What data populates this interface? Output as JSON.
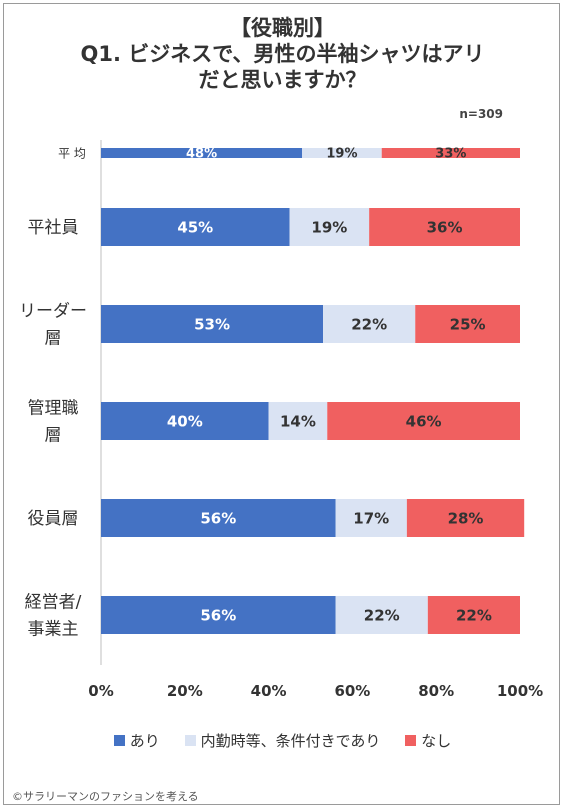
{
  "title_lines": [
    "【役職別】",
    "Q1. ビジネスで、男性の半袖シャツはアリ",
    "だと思いますか？"
  ],
  "sample_size": "n=309",
  "copyright": "©サラリーマンのファションを考える",
  "colors": {
    "yes": "#4472C4",
    "conditional": "#DAE3F3",
    "no": "#F06060"
  },
  "chart_data": {
    "type": "bar",
    "orientation": "horizontal",
    "stacked": true,
    "normalized": true,
    "categories": [
      "平均",
      "平社員",
      "リーダー層",
      "管理職層",
      "役員層",
      "経営者/事業主"
    ],
    "category_label_lines": [
      [
        "平 均"
      ],
      [
        "平社員"
      ],
      [
        "リーダー",
        "層"
      ],
      [
        "管理職",
        "層"
      ],
      [
        "役員層"
      ],
      [
        "経営者/",
        "事業主"
      ]
    ],
    "series": [
      {
        "name": "あり",
        "values": [
          48,
          45,
          53,
          40,
          56,
          56
        ]
      },
      {
        "name": "内勤時等、条件付きであり",
        "values": [
          19,
          19,
          22,
          14,
          17,
          22
        ]
      },
      {
        "name": "なし",
        "values": [
          33,
          36,
          25,
          46,
          28,
          22
        ]
      }
    ],
    "value_labels": [
      [
        "48%",
        "19%",
        "33%"
      ],
      [
        "45%",
        "19%",
        "36%"
      ],
      [
        "53%",
        "22%",
        "25%"
      ],
      [
        "40%",
        "14%",
        "46%"
      ],
      [
        "56%",
        "17%",
        "28%"
      ],
      [
        "56%",
        "22%",
        "22%"
      ]
    ],
    "x_ticks": [
      "0%",
      "20%",
      "40%",
      "60%",
      "80%",
      "100%"
    ],
    "xlim": [
      0,
      100
    ],
    "grid": false,
    "legend_position": "bottom"
  }
}
